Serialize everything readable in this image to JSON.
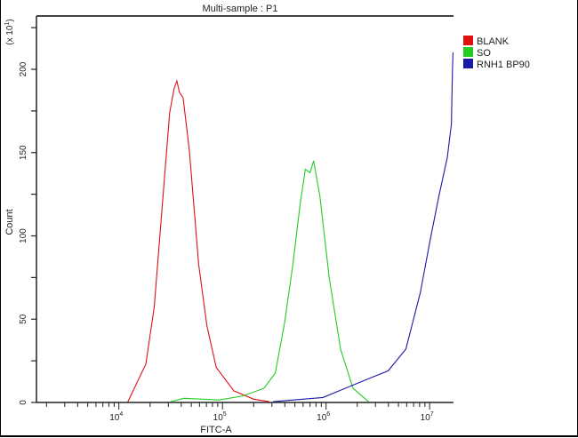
{
  "chart_data": {
    "type": "line",
    "title": "Multi-sample : P1",
    "xlabel": "FITC-A",
    "ylabel": "Count",
    "y_multiplier": {
      "base": "(x 10",
      "exp": "1",
      "close": ")"
    },
    "xscale": "log",
    "xlim": [
      1600,
      17000000
    ],
    "ylim": [
      0,
      232
    ],
    "x_ticks": [
      {
        "value": 10000,
        "base": "10",
        "exp": "4"
      },
      {
        "value": 100000,
        "base": "10",
        "exp": "5"
      },
      {
        "value": 1000000,
        "base": "10",
        "exp": "6"
      },
      {
        "value": 10000000,
        "base": "10",
        "exp": "7"
      }
    ],
    "y_ticks": [
      0,
      50,
      100,
      150,
      200
    ],
    "y_minor_step": 25,
    "grid": false,
    "legend_position": "right",
    "series": [
      {
        "name": "BLANK",
        "color": "#e01010",
        "x": [
          12200,
          18200,
          21900,
          26300,
          30900,
          34000,
          36300,
          38500,
          41700,
          47900,
          58900,
          70800,
          87100,
          128800,
          200000,
          281800
        ],
        "y": [
          0.5,
          23,
          57,
          119,
          174,
          188,
          193,
          186,
          183,
          151,
          83,
          46,
          21,
          7,
          2,
          0.5
        ]
      },
      {
        "name": "SO",
        "color": "#22cc22",
        "x": [
          31600,
          42700,
          93300,
          158500,
          251200,
          323600,
          398100,
          478600,
          562300,
          631000,
          700000,
          758600,
          871000,
          1071500,
          1380000,
          1820000,
          2570000
        ],
        "y": [
          0.5,
          2.5,
          1.5,
          4,
          8.5,
          17.6,
          48,
          83,
          119,
          140,
          138,
          145,
          124,
          75,
          32,
          8.5,
          0.5
        ]
      },
      {
        "name": "RNH1 BP90",
        "color": "#1a1aaa",
        "x": [
          309000,
          933000,
          2510000,
          3980000,
          5890000,
          8130000,
          10000000,
          12300000,
          14800000,
          16200000,
          16600000,
          16800000
        ],
        "y": [
          0.5,
          3,
          14,
          19,
          32,
          66,
          96,
          124,
          147,
          167,
          199,
          210
        ]
      }
    ]
  }
}
